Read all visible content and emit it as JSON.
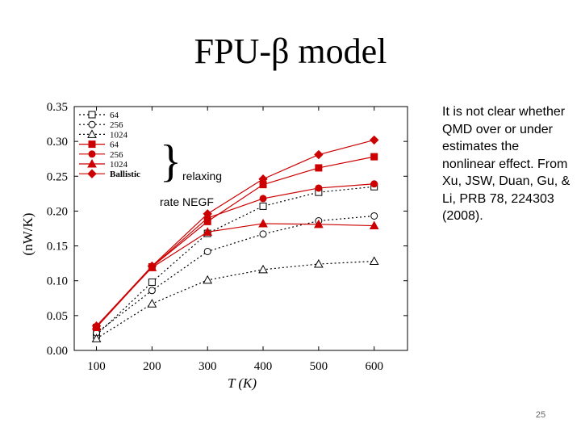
{
  "slide": {
    "title": "FPU-β model",
    "note": "It is not clear whether QMD over or under estimates the nonlinear effect. From Xu, JSW, Duan, Gu, & Li, PRB 78, 224303 (2008).",
    "number": "25",
    "annotation_brace": "}",
    "annotation_relaxing": "relaxing",
    "annotation_negf": "rate NEGF"
  },
  "colors": {
    "red": "#cc0000",
    "black": "#000000"
  },
  "chart_data": {
    "type": "line",
    "title": "",
    "xlabel": "T (K)",
    "ylabel": "(nW/K)",
    "x": [
      100,
      200,
      300,
      400,
      500,
      600
    ],
    "xticks": [
      "100",
      "200",
      "300",
      "400",
      "500",
      "600"
    ],
    "xlim": [
      60,
      660
    ],
    "ylim": [
      0,
      0.35
    ],
    "yticks": [
      "0.00",
      "0.05",
      "0.10",
      "0.15",
      "0.20",
      "0.25",
      "0.30",
      "0.35"
    ],
    "legend_position": "top-left",
    "series": [
      {
        "name": "64",
        "style": "dotted",
        "marker": "square-open",
        "color": "#000000",
        "values": [
          0.022,
          0.098,
          0.168,
          0.207,
          0.227,
          0.235
        ]
      },
      {
        "name": "256",
        "style": "dotted",
        "marker": "circle-open",
        "color": "#000000",
        "values": [
          0.025,
          0.086,
          0.142,
          0.167,
          0.186,
          0.193
        ]
      },
      {
        "name": "1024",
        "style": "dotted",
        "marker": "triangle-open",
        "color": "#000000",
        "values": [
          0.017,
          0.067,
          0.101,
          0.116,
          0.124,
          0.128
        ]
      },
      {
        "name": "64",
        "style": "solid",
        "marker": "square-filled",
        "color": "#cc0000",
        "values": [
          0.033,
          0.12,
          0.185,
          0.238,
          0.262,
          0.278
        ]
      },
      {
        "name": "256",
        "style": "solid",
        "marker": "circle-filled",
        "color": "#cc0000",
        "values": [
          0.034,
          0.12,
          0.19,
          0.218,
          0.233,
          0.239
        ]
      },
      {
        "name": "1024",
        "style": "solid",
        "marker": "triangle-filled",
        "color": "#cc0000",
        "values": [
          0.035,
          0.119,
          0.17,
          0.182,
          0.181,
          0.179
        ]
      },
      {
        "name": "Ballistic",
        "style": "solid",
        "marker": "diamond-filled",
        "color": "#cc0000",
        "values": [
          0.035,
          0.121,
          0.196,
          0.246,
          0.281,
          0.302
        ]
      }
    ]
  }
}
